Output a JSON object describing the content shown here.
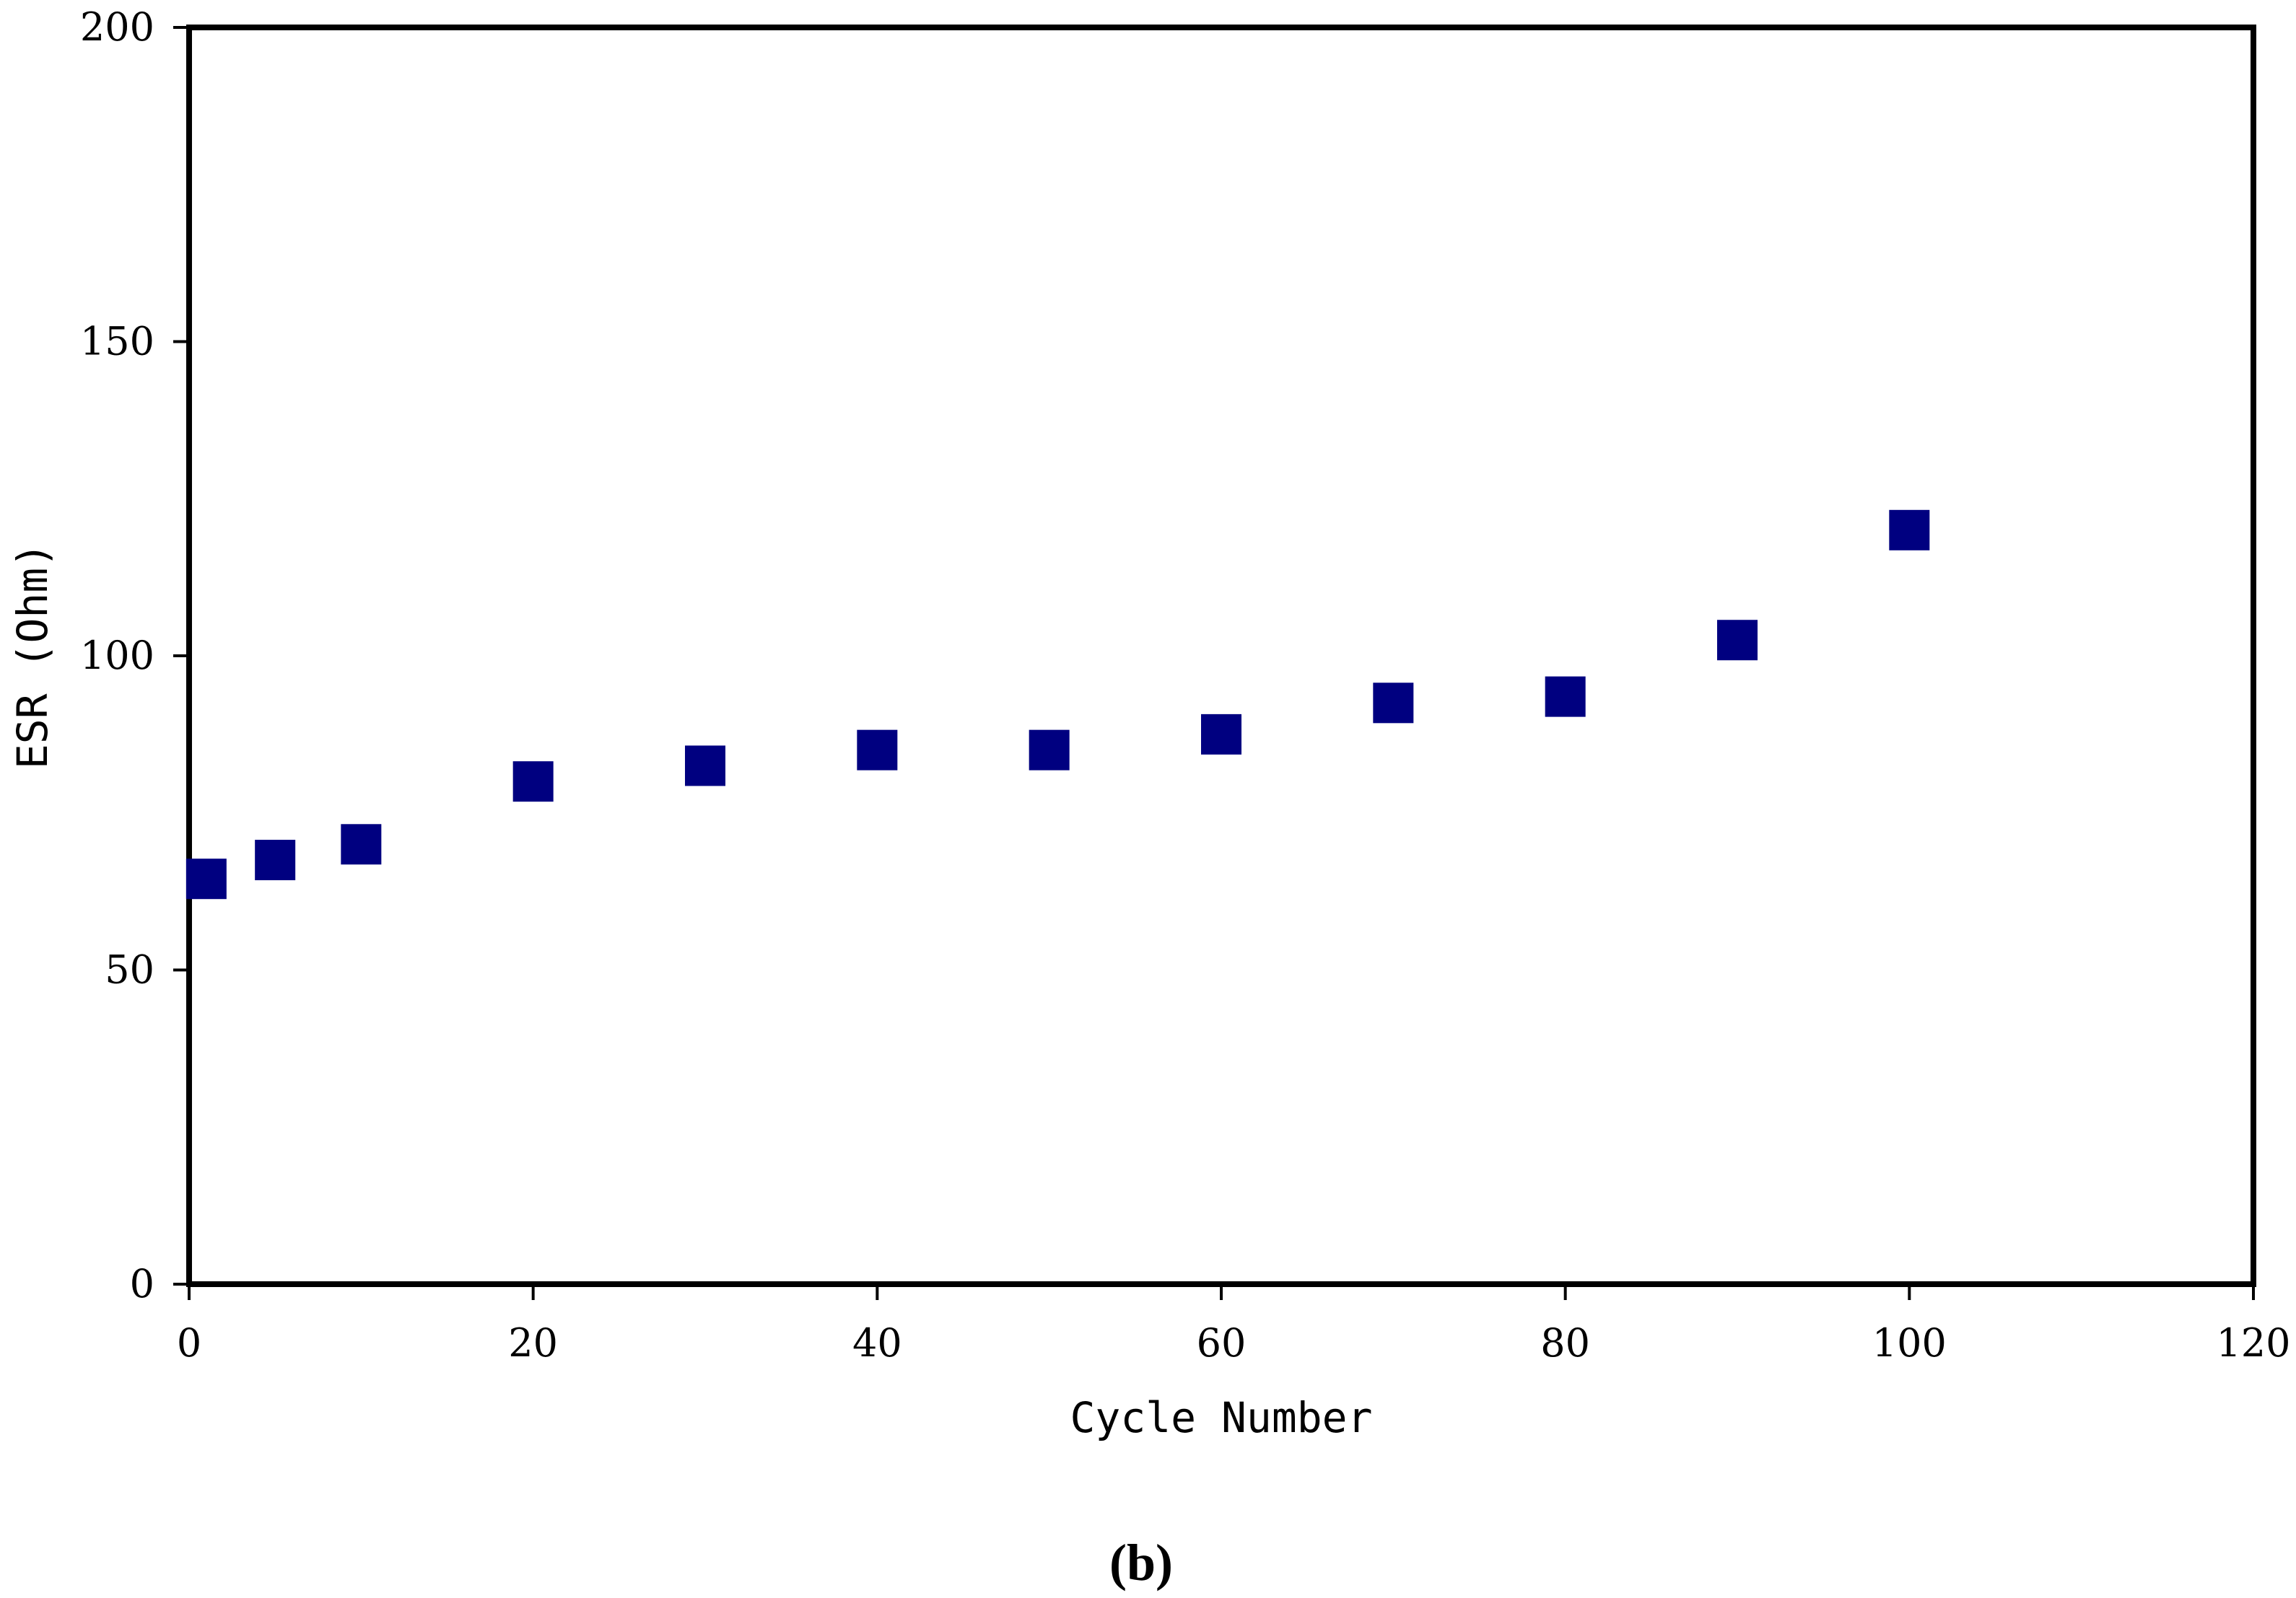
{
  "chart_data": {
    "type": "scatter",
    "xlabel": "Cycle Number",
    "ylabel": "ESR (Ohm)",
    "panel_label": "(b)",
    "xlim": [
      0,
      120
    ],
    "ylim": [
      0,
      200
    ],
    "xticks": [
      0,
      20,
      40,
      60,
      80,
      100,
      120
    ],
    "yticks": [
      0,
      50,
      100,
      150,
      200
    ],
    "grid": false,
    "marker": "square",
    "series": [
      {
        "color": "#000080",
        "points": [
          {
            "x": 1,
            "y": 64.5
          },
          {
            "x": 5,
            "y": 67.5
          },
          {
            "x": 10,
            "y": 70
          },
          {
            "x": 20,
            "y": 80
          },
          {
            "x": 30,
            "y": 82.5
          },
          {
            "x": 40,
            "y": 85
          },
          {
            "x": 50,
            "y": 85
          },
          {
            "x": 60,
            "y": 87.5
          },
          {
            "x": 70,
            "y": 92.5
          },
          {
            "x": 80,
            "y": 93.5
          },
          {
            "x": 90,
            "y": 102.5
          },
          {
            "x": 100,
            "y": 120
          }
        ]
      }
    ]
  }
}
